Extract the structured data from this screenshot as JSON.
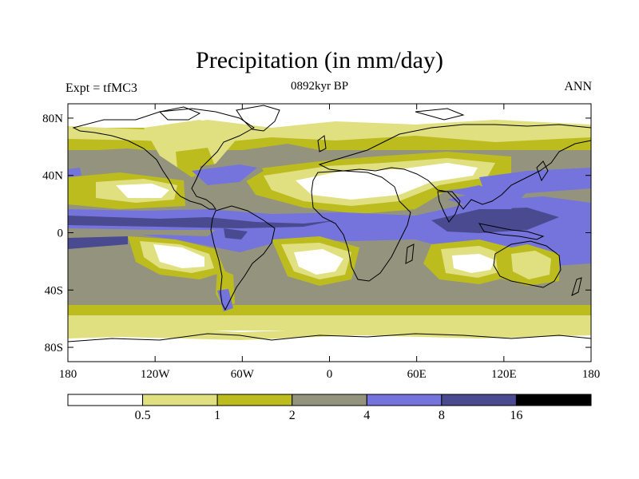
{
  "title": "Precipitation (in mm/day)",
  "subtitle": "0892kyr BP",
  "left_label": "Expt = tfMC3",
  "right_label": "ANN",
  "colors": {
    "class0": "#ffffff",
    "class1": "#e0e080",
    "class2": "#bcbc1e",
    "class3": "#94947e",
    "class4": "#7474dc",
    "class5": "#4a4a90",
    "class6": "#000000",
    "coast": "#000000"
  },
  "map": {
    "lat_ticks": [
      {
        "lat": 80,
        "label": "80N"
      },
      {
        "lat": 40,
        "label": "40N"
      },
      {
        "lat": 0,
        "label": "0"
      },
      {
        "lat": -40,
        "label": "40S"
      },
      {
        "lat": -80,
        "label": "80S"
      }
    ],
    "lon_ticks": [
      {
        "lon": -180,
        "label": "180"
      },
      {
        "lon": -120,
        "label": "120W"
      },
      {
        "lon": -60,
        "label": "60W"
      },
      {
        "lon": 0,
        "label": "0"
      },
      {
        "lon": 60,
        "label": "60E"
      },
      {
        "lon": 120,
        "label": "120E"
      },
      {
        "lon": 180,
        "label": "180"
      }
    ]
  },
  "legend": {
    "levels": [
      "0.5",
      "1",
      "2",
      "4",
      "8",
      "16"
    ],
    "bins": [
      "class0",
      "class1",
      "class2",
      "class3",
      "class4",
      "class5",
      "class6"
    ]
  }
}
